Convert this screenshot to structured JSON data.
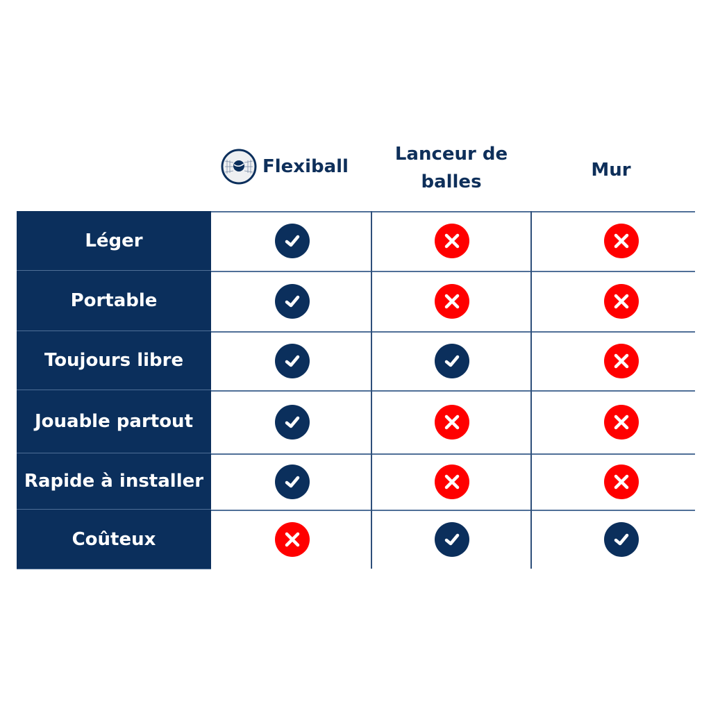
{
  "columns": [
    {
      "label": "Flexiball",
      "logo": "flexiball-logo"
    },
    {
      "label_lines": [
        "Lanceur de",
        "balles"
      ]
    },
    {
      "label": "Mur"
    }
  ],
  "rows": [
    {
      "label": "Léger",
      "values": [
        true,
        false,
        false
      ]
    },
    {
      "label": "Portable",
      "values": [
        true,
        false,
        false
      ]
    },
    {
      "label": "Toujours libre",
      "values": [
        true,
        true,
        false
      ]
    },
    {
      "label": "Jouable partout",
      "values": [
        true,
        false,
        false
      ]
    },
    {
      "label": "Rapide à installer",
      "values": [
        true,
        false,
        false
      ]
    },
    {
      "label": "Coûteux",
      "values": [
        false,
        true,
        true
      ]
    }
  ],
  "colors": {
    "navy": "#0b2f5c",
    "cross": "#ff0000",
    "line": "#4f6f97"
  },
  "icons": {
    "yes": "check-circle-icon",
    "no": "x-circle-icon"
  }
}
